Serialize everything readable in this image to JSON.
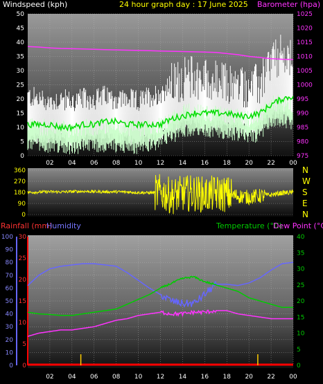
{
  "header": {
    "title": "24 hour graph day : 17 June 2025",
    "left_label": "Windspeed (kph)",
    "right_label": "Barometer (hpa)"
  },
  "direction": {
    "compass": [
      "N",
      "W",
      "S",
      "E",
      "N"
    ]
  },
  "bottom": {
    "rainfall_label": "Rainfall (mm)",
    "humidity_label": "Humidity",
    "temperature_label": "Temperature (°C)",
    "dewpoint_label": "Dew Point (°C)"
  },
  "colors": {
    "title": "#ffff00",
    "wind_max": "#ffffff",
    "wind_avg": "#ccffcc",
    "wind_mean_line": "#00dd00",
    "barometer": "#ff33ff",
    "direction": "#ffff00",
    "humidity": "#6666ff",
    "temperature": "#00cc00",
    "dewpoint": "#ff33ff",
    "rainfall": "#ff0000",
    "rain_bar": "#ffcc00"
  },
  "chart_data": [
    {
      "type": "area",
      "name": "wind",
      "x_ticks": [
        "02",
        "04",
        "06",
        "08",
        "10",
        "12",
        "14",
        "16",
        "18",
        "20",
        "22",
        "00"
      ],
      "ylim": [
        0,
        50
      ],
      "y_ticks": [
        0,
        5,
        10,
        15,
        20,
        25,
        30,
        35,
        40,
        45,
        50
      ],
      "y2lim": [
        975,
        1025
      ],
      "y2_ticks": [
        975,
        980,
        985,
        990,
        995,
        1000,
        1005,
        1010,
        1015,
        1020,
        1025
      ],
      "hours": [
        0,
        1,
        2,
        3,
        4,
        5,
        6,
        7,
        8,
        9,
        10,
        11,
        12,
        13,
        14,
        15,
        16,
        17,
        18,
        19,
        20,
        21,
        22,
        23,
        24
      ],
      "gust": [
        21,
        20,
        19,
        20,
        19,
        20,
        20,
        21,
        20,
        20,
        19,
        21,
        22,
        25,
        27,
        28,
        27,
        26,
        25,
        25,
        24,
        25,
        33,
        35,
        33
      ],
      "avg": [
        11,
        10,
        10,
        10,
        9,
        10,
        10,
        10,
        10,
        10,
        9,
        10,
        11,
        13,
        15,
        16,
        15,
        15,
        14,
        14,
        13,
        14,
        18,
        19,
        17
      ],
      "mean": [
        11,
        11,
        11,
        10,
        10,
        11,
        11,
        12,
        12,
        11,
        11,
        11,
        11,
        13,
        14,
        15,
        15,
        15,
        15,
        14,
        14,
        15,
        18,
        20,
        21
      ],
      "barometer": [
        1013.5,
        1013.3,
        1013.0,
        1012.8,
        1012.7,
        1012.6,
        1012.5,
        1012.4,
        1012.3,
        1012.2,
        1012.1,
        1012.0,
        1011.9,
        1011.8,
        1011.7,
        1011.6,
        1011.5,
        1011.4,
        1011.0,
        1010.6,
        1010.0,
        1009.6,
        1009.2,
        1009.0,
        1008.9
      ]
    },
    {
      "type": "line",
      "name": "wind_direction",
      "ylim": [
        0,
        360
      ],
      "y_ticks": [
        0,
        90,
        180,
        270,
        360
      ],
      "hours": [
        0,
        1,
        2,
        3,
        4,
        5,
        6,
        7,
        8,
        9,
        10,
        11,
        12,
        13,
        14,
        15,
        16,
        17,
        18,
        19,
        20,
        21,
        22,
        23,
        24
      ],
      "values": [
        180,
        182,
        185,
        183,
        186,
        188,
        186,
        184,
        185,
        183,
        178,
        176,
        180,
        150,
        170,
        175,
        160,
        170,
        165,
        150,
        140,
        150,
        160,
        175,
        180
      ]
    },
    {
      "type": "line",
      "name": "temp_humidity",
      "ylim": [
        0,
        100
      ],
      "y_ticks": [
        0,
        10,
        20,
        30,
        40,
        50,
        60,
        70,
        80,
        90,
        100
      ],
      "y_rain_lim": [
        0,
        30
      ],
      "y_rain_ticks": [
        0,
        5,
        10,
        15,
        20,
        25,
        30
      ],
      "y2lim": [
        0,
        40
      ],
      "y2_ticks": [
        0,
        5,
        10,
        15,
        20,
        25,
        30,
        35,
        40
      ],
      "hours": [
        0,
        1,
        2,
        3,
        4,
        5,
        6,
        7,
        8,
        9,
        10,
        11,
        12,
        13,
        14,
        15,
        16,
        17,
        18,
        19,
        20,
        21,
        22,
        23,
        24
      ],
      "humidity": [
        62,
        70,
        75,
        77,
        78,
        79,
        79,
        78,
        77,
        72,
        66,
        60,
        55,
        50,
        48,
        48,
        55,
        63,
        63,
        62,
        64,
        68,
        74,
        79,
        80
      ],
      "temperature": [
        16.5,
        16,
        15.8,
        15.5,
        15.5,
        16,
        16.5,
        17,
        17.5,
        19,
        20.5,
        22,
        24,
        25.5,
        27,
        27.5,
        26,
        25,
        24,
        23,
        21,
        20,
        19,
        18,
        18
      ],
      "dewpoint": [
        9,
        10,
        10.5,
        11,
        11,
        11.5,
        12,
        13,
        14,
        14.5,
        15.5,
        16,
        16.5,
        16,
        16,
        16.5,
        16.5,
        17,
        17,
        16,
        15.5,
        15,
        14.5,
        14.5,
        14.5
      ],
      "rain_marks_hours": [
        4.8,
        20.8
      ],
      "rainfall": 0
    }
  ]
}
